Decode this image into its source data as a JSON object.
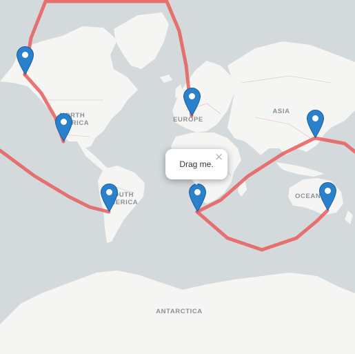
{
  "map": {
    "labels": {
      "north_america": "NORTH\nAMERICA",
      "europe": "EUROPE",
      "asia": "ASIA",
      "south_america": "SOUTH\nAMERICA",
      "oceania": "OCEANIA",
      "antarctica": "ANTARCTICA"
    },
    "route_color": "#e85d5d",
    "marker_color": "#2a81cb",
    "markers": [
      {
        "name": "alaska"
      },
      {
        "name": "los-angeles"
      },
      {
        "name": "europe"
      },
      {
        "name": "japan"
      },
      {
        "name": "chile"
      },
      {
        "name": "cape-town"
      },
      {
        "name": "australia"
      }
    ]
  },
  "popup": {
    "text": "Drag me.",
    "close_symbol": "×"
  }
}
